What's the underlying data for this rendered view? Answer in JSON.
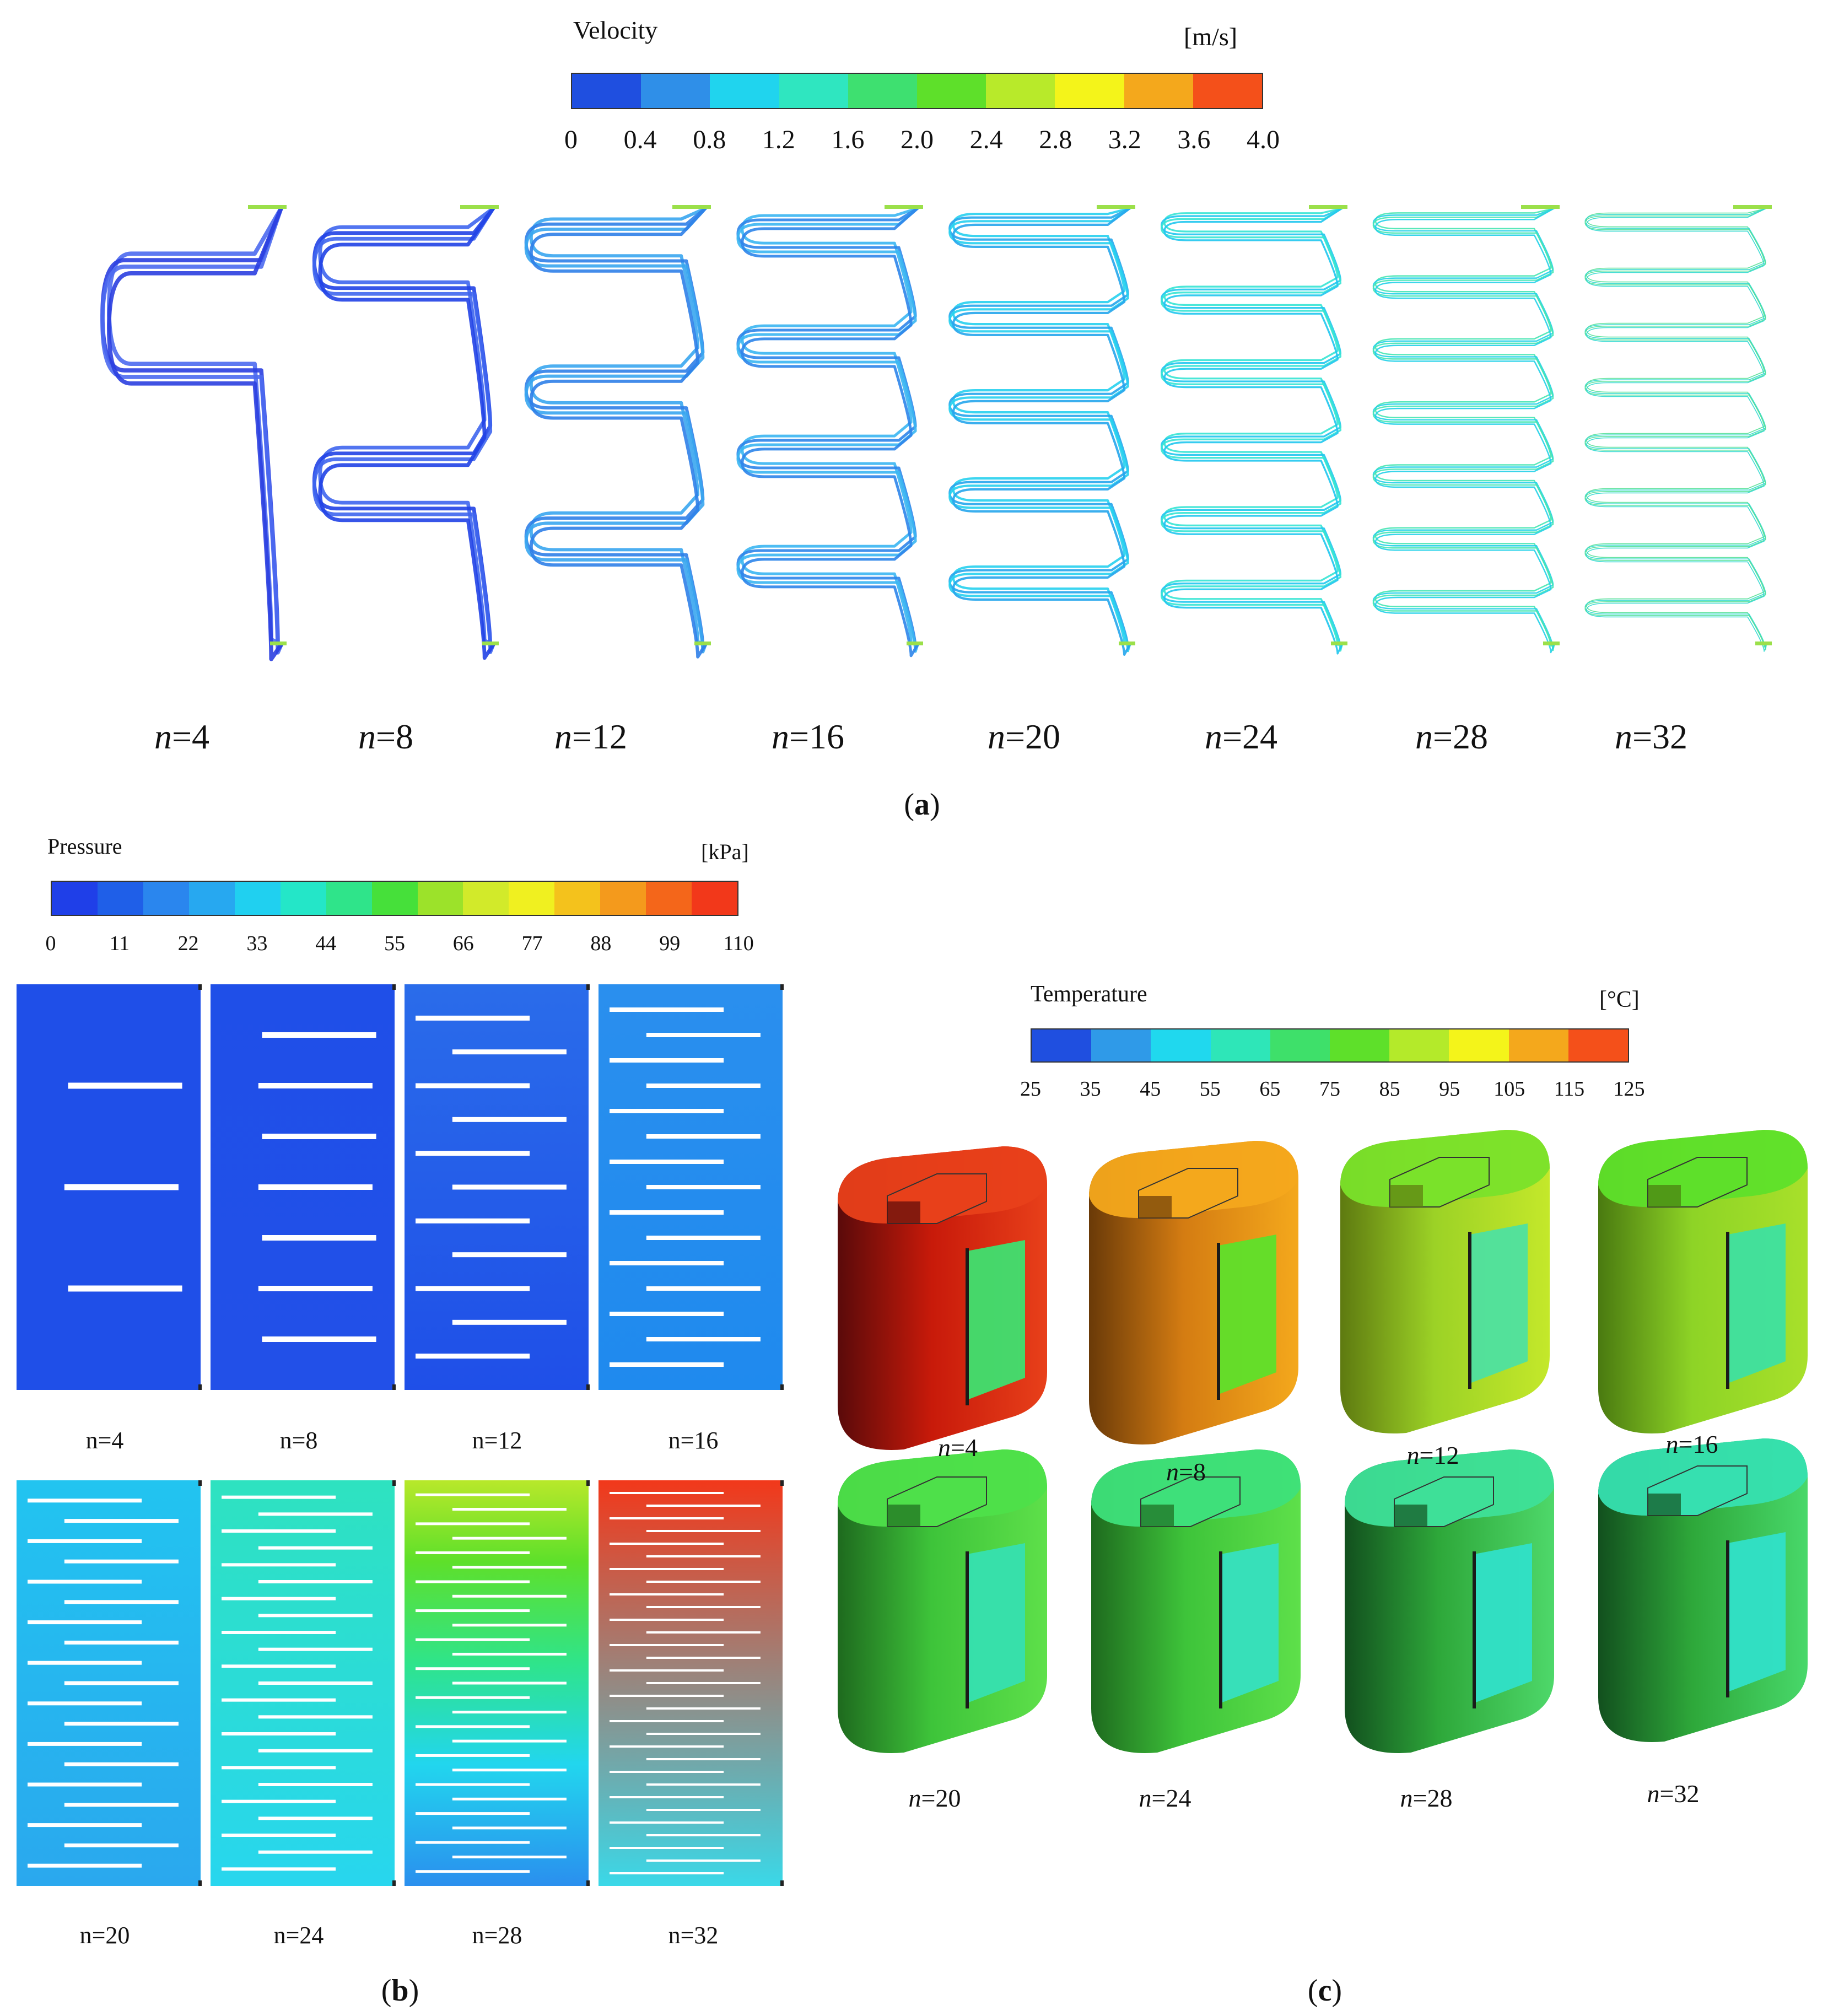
{
  "panel_a": {
    "colorbar": {
      "title": "Velocity",
      "unit": "[m/s]",
      "ticks": [
        "0",
        "0.4",
        "0.8",
        "1.2",
        "1.6",
        "2.0",
        "2.4",
        "2.8",
        "3.2",
        "3.6",
        "4.0"
      ],
      "colors": [
        "#1f4fe0",
        "#2f8fe8",
        "#20d4ee",
        "#2fe6c0",
        "#3ee070",
        "#5ee02a",
        "#b8ea2a",
        "#f4f41a",
        "#f4a81c",
        "#f4501a"
      ]
    },
    "cases": [
      "n",
      "=4",
      "n",
      "=8",
      "n",
      "=12",
      "n",
      "=16",
      "n",
      "=20",
      "n",
      "=24",
      "n",
      "=28",
      "n",
      "=32"
    ],
    "case_labels": [
      {
        "var": "n",
        "val": "=4"
      },
      {
        "var": "n",
        "val": "=8"
      },
      {
        "var": "n",
        "val": "=12"
      },
      {
        "var": "n",
        "val": "=16"
      },
      {
        "var": "n",
        "val": "=20"
      },
      {
        "var": "n",
        "val": "=24"
      },
      {
        "var": "n",
        "val": "=28"
      },
      {
        "var": "n",
        "val": "=32"
      }
    ],
    "label": "a"
  },
  "panel_b": {
    "colorbar": {
      "title": "Pressure",
      "unit": "[kPa]",
      "ticks": [
        "0",
        "11",
        "22",
        "33",
        "44",
        "55",
        "66",
        "77",
        "88",
        "99",
        "110"
      ],
      "colors": [
        "#1f3fe8",
        "#1f5fe8",
        "#2a86ee",
        "#27a8f0",
        "#20d0f0",
        "#24e6c8",
        "#2fe48a",
        "#46e03a",
        "#9ce22a",
        "#d2ea2a",
        "#f0f020",
        "#f4c21c",
        "#f49a1c",
        "#f4661a",
        "#f2381a"
      ]
    },
    "case_labels": [
      "n=4",
      "n=8",
      "n=12",
      "n=16",
      "n=20",
      "n=24",
      "n=28",
      "n=32"
    ],
    "label": "b"
  },
  "panel_c": {
    "colorbar": {
      "title": "Temperature",
      "unit": "[°C]",
      "ticks": [
        "25",
        "35",
        "45",
        "55",
        "65",
        "75",
        "85",
        "95",
        "105",
        "115",
        "125"
      ],
      "colors": [
        "#1f4fe0",
        "#2f9ae8",
        "#20d8ee",
        "#2ee6b8",
        "#3ee06a",
        "#5ee02a",
        "#b4ea2a",
        "#f4f41a",
        "#f4a81c",
        "#f4501a"
      ]
    },
    "case_labels": [
      {
        "var": "n",
        "val": "=4"
      },
      {
        "var": "n",
        "val": "=8"
      },
      {
        "var": "n",
        "val": "=12"
      },
      {
        "var": "n",
        "val": "=16"
      },
      {
        "var": "n",
        "val": "=20"
      },
      {
        "var": "n",
        "val": "=24"
      },
      {
        "var": "n",
        "val": "=28"
      },
      {
        "var": "n",
        "val": "=32"
      }
    ],
    "label": "c"
  }
}
